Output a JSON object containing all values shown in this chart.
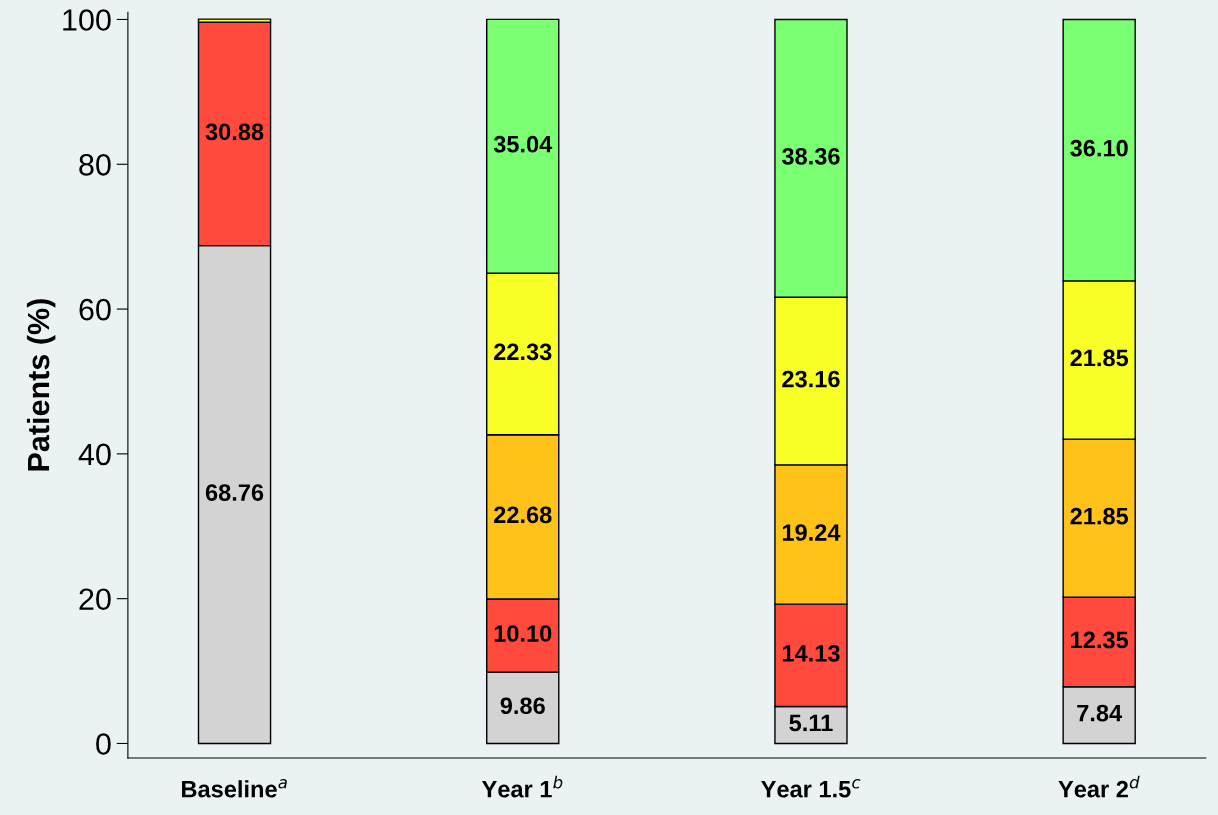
{
  "chart_data": {
    "type": "bar",
    "stacked": true,
    "ylabel": "Patients (%)",
    "categories": [
      "Baseline$^{a}$",
      "Year 1$^{b}$",
      "Year 1.5$^{c}$",
      "Year 2$^{d}$"
    ],
    "series": [
      {
        "color": "#d3d3d3",
        "values": [
          68.76,
          9.86,
          5.11,
          7.84
        ],
        "value_labels": [
          "68.76",
          "9.86",
          "5.11",
          "7.84"
        ]
      },
      {
        "color": "#ff4a3d",
        "values": [
          30.88,
          10.1,
          14.13,
          12.35
        ],
        "value_labels": [
          "30.88",
          "10.10",
          "14.13",
          "12.35"
        ]
      },
      {
        "color": "#ffc219",
        "values": [
          null,
          22.68,
          19.24,
          21.85
        ],
        "value_labels": [
          null,
          "22.68",
          "19.24",
          "21.85"
        ]
      },
      {
        "color": "#f8ff26",
        "values": [
          0.4,
          22.33,
          23.16,
          21.85
        ],
        "value_labels": [
          null,
          "22.33",
          "23.16",
          "21.85"
        ]
      },
      {
        "color": "#7aff72",
        "values": [
          null,
          35.04,
          38.36,
          36.1
        ],
        "value_labels": [
          null,
          "35.04",
          "38.36",
          "36.10"
        ]
      }
    ],
    "ylim": [
      -2,
      101
    ],
    "yticks": [
      0,
      20,
      40,
      60,
      80,
      100
    ],
    "grid": false,
    "legend": false
  }
}
